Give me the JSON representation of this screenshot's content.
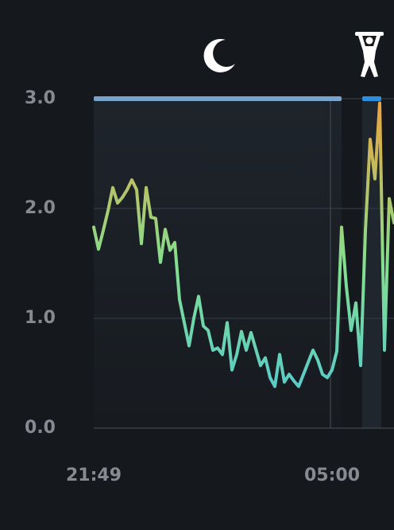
{
  "chart_data": {
    "type": "line",
    "categories": [
      "21:49",
      null,
      null,
      null,
      null,
      null,
      null,
      null,
      null,
      null,
      null,
      null,
      null,
      null,
      null,
      null,
      null,
      null,
      null,
      null,
      null,
      null,
      null,
      null,
      null,
      null,
      null,
      null,
      null,
      null,
      null,
      null,
      null,
      null,
      null,
      null,
      null,
      null,
      null,
      null,
      null,
      null,
      null,
      null,
      null,
      null,
      null,
      null,
      null,
      null,
      "05:00",
      null,
      null,
      null,
      null,
      null,
      null,
      null,
      null,
      null,
      null,
      null,
      null,
      null
    ],
    "values": [
      1.83,
      1.63,
      1.8,
      1.98,
      2.19,
      2.05,
      2.1,
      2.17,
      2.26,
      2.17,
      1.68,
      2.19,
      1.92,
      1.91,
      1.51,
      1.81,
      1.62,
      1.69,
      1.17,
      0.96,
      0.75,
      1.0,
      1.2,
      0.93,
      0.89,
      0.71,
      0.73,
      0.67,
      0.96,
      0.53,
      0.67,
      0.88,
      0.71,
      0.87,
      0.72,
      0.57,
      0.64,
      0.46,
      0.38,
      0.67,
      0.42,
      0.49,
      0.43,
      0.38,
      0.49,
      0.6,
      0.71,
      0.62,
      0.49,
      0.46,
      0.53,
      0.7,
      1.83,
      1.29,
      0.89,
      1.14,
      0.57,
      1.8,
      2.63,
      2.27,
      2.96,
      0.71,
      2.09,
      1.87
    ],
    "color_scale": [
      "#4cc6dc",
      "#84df8e",
      "#f0a23c"
    ],
    "ylim": [
      0,
      3
    ],
    "yticks": [
      {
        "value": 0,
        "label": "0.0"
      },
      {
        "value": 1,
        "label": "1.0"
      },
      {
        "value": 2,
        "label": "2.0"
      },
      {
        "value": 3,
        "label": "3.0"
      }
    ],
    "grid": true
  }
}
